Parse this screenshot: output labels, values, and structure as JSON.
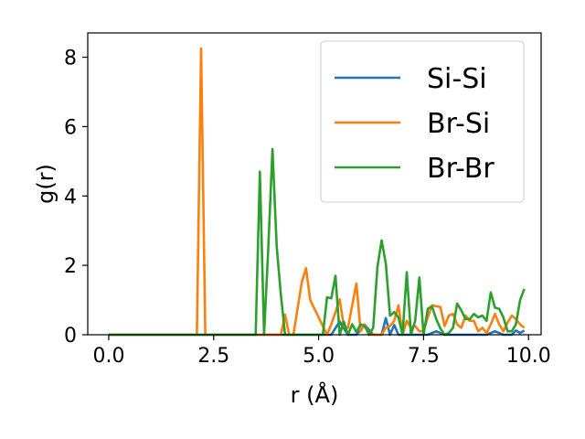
{
  "chart_data": {
    "type": "line",
    "xlabel": "r (Å)",
    "ylabel": "g(r)",
    "xlim": [
      -0.5,
      10.3
    ],
    "ylim": [
      0,
      8.7
    ],
    "xticks": [
      "0.0",
      "2.5",
      "5.0",
      "7.5",
      "10.0"
    ],
    "yticks": [
      "0",
      "2",
      "4",
      "6",
      "8"
    ],
    "grid": false,
    "legend": "top-right",
    "series": [
      {
        "name": "Si-Si",
        "color": "#1f77b4",
        "x": [
          0.0,
          5.0,
          5.3,
          5.5,
          5.7,
          5.9,
          6.1,
          6.3,
          6.5,
          6.6,
          6.7,
          6.8,
          6.9,
          7.0,
          7.2,
          7.4,
          7.6,
          7.8,
          8.0,
          8.5,
          9.0,
          9.2,
          9.4,
          9.6,
          9.7,
          9.8,
          9.9
        ],
        "y": [
          0.0,
          0.0,
          0.0,
          0.38,
          0.0,
          0.0,
          0.28,
          0.0,
          0.0,
          0.48,
          0.0,
          0.28,
          0.0,
          0.0,
          0.0,
          0.0,
          0.0,
          0.1,
          0.0,
          0.0,
          0.0,
          0.1,
          0.0,
          0.0,
          0.12,
          0.05,
          0.12
        ]
      },
      {
        "name": "Br-Si",
        "color": "#ff7f0e",
        "x": [
          0.0,
          2.1,
          2.2,
          2.3,
          4.1,
          4.2,
          4.3,
          4.4,
          4.6,
          4.7,
          4.8,
          5.2,
          5.3,
          5.4,
          5.5,
          5.6,
          5.7,
          5.8,
          5.9,
          6.0,
          6.1,
          6.2,
          6.3,
          6.4,
          6.5,
          6.6,
          6.7,
          6.8,
          6.9,
          7.0,
          7.1,
          7.2,
          7.3,
          7.4,
          7.5,
          7.6,
          7.7,
          7.8,
          7.9,
          8.0,
          8.1,
          8.2,
          8.3,
          8.4,
          8.5,
          8.6,
          8.7,
          8.8,
          8.9,
          9.0,
          9.1,
          9.2,
          9.3,
          9.4,
          9.5,
          9.6,
          9.7,
          9.8,
          9.9
        ],
        "y": [
          0.0,
          0.0,
          8.25,
          0.0,
          0.0,
          0.58,
          0.0,
          0.0,
          1.52,
          1.92,
          1.0,
          0.0,
          0.3,
          0.65,
          1.02,
          0.25,
          0.2,
          0.85,
          1.48,
          0.1,
          0.3,
          0.0,
          0.0,
          0.0,
          0.0,
          0.2,
          0.25,
          0.4,
          0.85,
          0.0,
          0.4,
          0.2,
          0.25,
          0.1,
          0.1,
          0.5,
          0.85,
          0.82,
          0.8,
          0.25,
          0.55,
          0.6,
          0.3,
          0.2,
          0.55,
          0.4,
          0.4,
          0.1,
          0.2,
          0.05,
          0.3,
          0.6,
          0.3,
          0.1,
          0.35,
          0.55,
          0.45,
          0.3,
          0.2
        ]
      },
      {
        "name": "Br-Br",
        "color": "#2ca02c",
        "x": [
          0.0,
          3.5,
          3.6,
          3.7,
          3.8,
          3.9,
          4.0,
          4.1,
          4.2,
          4.3,
          5.1,
          5.2,
          5.3,
          5.4,
          5.5,
          5.6,
          5.7,
          5.8,
          5.9,
          6.0,
          6.1,
          6.2,
          6.3,
          6.4,
          6.5,
          6.6,
          6.7,
          6.8,
          6.9,
          7.0,
          7.1,
          7.2,
          7.3,
          7.4,
          7.5,
          7.6,
          7.7,
          7.8,
          7.9,
          8.0,
          8.1,
          8.2,
          8.3,
          8.4,
          8.5,
          8.6,
          8.7,
          8.8,
          8.9,
          9.0,
          9.1,
          9.2,
          9.3,
          9.4,
          9.5,
          9.6,
          9.7,
          9.8,
          9.9
        ],
        "y": [
          0.0,
          0.0,
          4.7,
          0.0,
          2.5,
          5.35,
          2.55,
          1.15,
          0.0,
          0.0,
          0.0,
          1.08,
          1.05,
          1.7,
          0.0,
          0.38,
          0.0,
          0.3,
          0.08,
          0.3,
          0.25,
          0.0,
          0.2,
          1.95,
          2.72,
          2.05,
          0.55,
          0.65,
          0.5,
          0.0,
          1.8,
          0.0,
          0.4,
          1.65,
          0.0,
          0.75,
          0.82,
          0.45,
          0.18,
          0.0,
          0.05,
          0.2,
          0.9,
          0.7,
          0.45,
          0.45,
          0.6,
          0.5,
          0.55,
          0.4,
          1.22,
          0.78,
          0.75,
          0.5,
          0.1,
          0.1,
          0.3,
          1.0,
          1.32
        ]
      }
    ]
  }
}
